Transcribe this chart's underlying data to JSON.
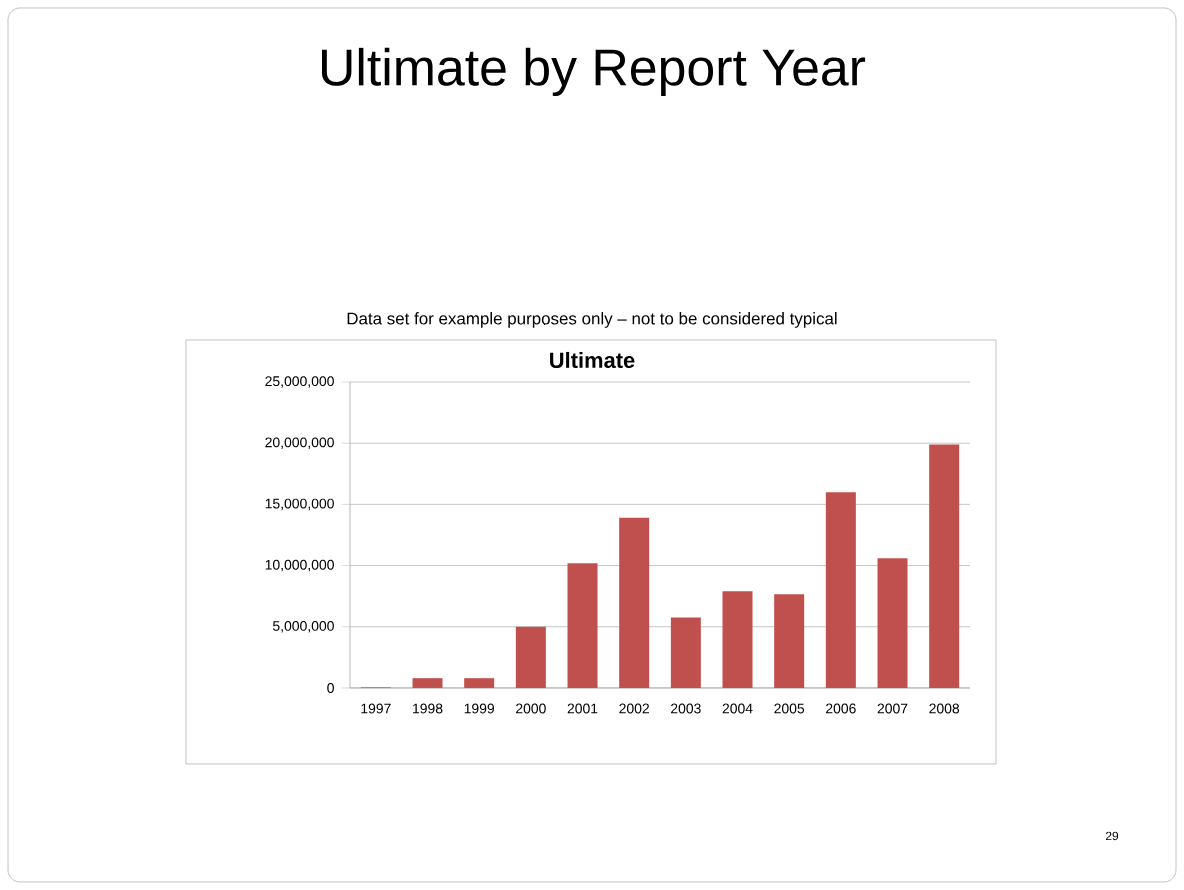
{
  "chart_data": {
    "type": "bar",
    "title": "Ultimate",
    "annotations": [
      "Ultimate by Report Year",
      "Data set for example purposes only – not to be considered typical",
      "29"
    ],
    "categories": [
      "1997",
      "1998",
      "1999",
      "2000",
      "2001",
      "2002",
      "2003",
      "2004",
      "2005",
      "2006",
      "2007",
      "2008"
    ],
    "values": [
      50000,
      800000,
      800000,
      5000000,
      10200000,
      13900000,
      5750000,
      7900000,
      7650000,
      16000000,
      10600000,
      19900000
    ],
    "color": "#c0504d",
    "ylim": [
      0,
      25000000
    ],
    "yticks": [
      0,
      {
        "value": 5000000,
        "label": "5,000,000"
      },
      {
        "value": 10000000,
        "label": "10,000,000"
      },
      {
        "value": 15000000,
        "label": "15,000,000"
      },
      {
        "value": 20000000,
        "label": "20,000,000"
      },
      {
        "value": 25000000,
        "label": "25,000,000"
      }
    ],
    "grid": "y"
  }
}
